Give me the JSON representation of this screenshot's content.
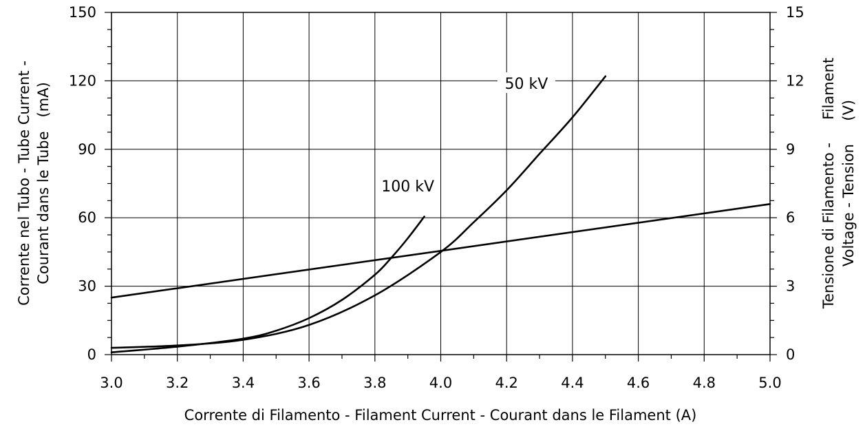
{
  "chart_data": {
    "type": "line",
    "title": "",
    "xlabel": "Corrente di Filamento - Filament Current - Courant dans le Filament  (A)",
    "ylabel_left_lines": [
      "Corrente nel Tubo - Tube Current -",
      "Courant dans le Tube   (mA)"
    ],
    "ylabel_right_lines": [
      "Tensione di Filamento -     Filament",
      "Voltage - Tension     (V)"
    ],
    "xlim": [
      3.0,
      5.0
    ],
    "ylim_left": [
      0,
      150
    ],
    "ylim_right": [
      0,
      15
    ],
    "x_ticks": [
      "3.0",
      "3.2",
      "3.4",
      "3.6",
      "3.8",
      "4.0",
      "4.2",
      "4.4",
      "4.6",
      "4.8",
      "5.0"
    ],
    "y_left_ticks": [
      "0",
      "30",
      "60",
      "90",
      "120",
      "150"
    ],
    "y_right_ticks": [
      "0",
      "3",
      "6",
      "9",
      "12",
      "15"
    ],
    "grid": true,
    "series": [
      {
        "name": "100 kV",
        "axis": "left",
        "x": [
          3.0,
          3.2,
          3.4,
          3.5,
          3.6,
          3.7,
          3.8,
          3.85,
          3.9,
          3.95
        ],
        "y": [
          1.0,
          3.5,
          7.0,
          10.5,
          16.0,
          24.0,
          35.0,
          42.5,
          51.0,
          60.5
        ]
      },
      {
        "name": "50 kV",
        "axis": "left",
        "x": [
          3.0,
          3.2,
          3.4,
          3.6,
          3.8,
          4.0,
          4.1,
          4.2,
          4.3,
          4.4,
          4.5
        ],
        "y": [
          3.0,
          4.0,
          6.5,
          13.0,
          26.0,
          45.0,
          58.0,
          72.0,
          88.0,
          104.0,
          122.0
        ]
      },
      {
        "name": "",
        "axis": "right",
        "x": [
          3.0,
          5.0
        ],
        "y": [
          2.5,
          6.6
        ]
      }
    ],
    "annotations": [
      {
        "text": "100 kV",
        "x": 3.9,
        "y": 73
      },
      {
        "text": "50 kV",
        "x": 4.26,
        "y": 118
      }
    ]
  }
}
